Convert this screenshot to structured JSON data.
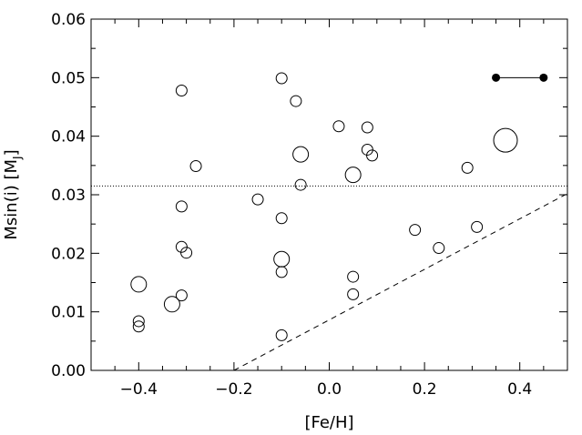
{
  "chart_data": {
    "type": "scatter",
    "xlabel": "[Fe/H]",
    "ylabel_main": "Msin(i)  [M",
    "ylabel_sub": "J",
    "ylabel_close": "]",
    "xlim": [
      -0.5,
      0.5
    ],
    "ylim": [
      0.0,
      0.06
    ],
    "x_ticks": [
      {
        "value": -0.4,
        "label": "−0.4"
      },
      {
        "value": -0.2,
        "label": "−0.2"
      },
      {
        "value": 0.0,
        "label": "0.0"
      },
      {
        "value": 0.2,
        "label": "0.2"
      },
      {
        "value": 0.4,
        "label": "0.4"
      }
    ],
    "y_ticks": [
      {
        "value": 0.0,
        "label": "0.00"
      },
      {
        "value": 0.01,
        "label": "0.01"
      },
      {
        "value": 0.02,
        "label": "0.02"
      },
      {
        "value": 0.03,
        "label": "0.03"
      },
      {
        "value": 0.04,
        "label": "0.04"
      },
      {
        "value": 0.05,
        "label": "0.05"
      },
      {
        "value": 0.06,
        "label": "0.06"
      }
    ],
    "hline_dotted": 0.0315,
    "dashed_line": [
      [
        -0.2,
        0.0
      ],
      [
        0.5,
        0.0302
      ]
    ],
    "error_bar": {
      "x": [
        0.35,
        0.45
      ],
      "y": 0.05
    },
    "points": [
      {
        "x": -0.31,
        "y": 0.0478,
        "size": "small"
      },
      {
        "x": -0.1,
        "y": 0.0499,
        "size": "small"
      },
      {
        "x": -0.07,
        "y": 0.046,
        "size": "small"
      },
      {
        "x": 0.02,
        "y": 0.0417,
        "size": "small"
      },
      {
        "x": 0.08,
        "y": 0.0415,
        "size": "small"
      },
      {
        "x": 0.37,
        "y": 0.0393,
        "size": "large"
      },
      {
        "x": -0.06,
        "y": 0.0369,
        "size": "medium"
      },
      {
        "x": 0.08,
        "y": 0.0377,
        "size": "small"
      },
      {
        "x": 0.09,
        "y": 0.0367,
        "size": "small"
      },
      {
        "x": -0.28,
        "y": 0.0349,
        "size": "small"
      },
      {
        "x": 0.29,
        "y": 0.0346,
        "size": "small"
      },
      {
        "x": 0.05,
        "y": 0.0334,
        "size": "medium"
      },
      {
        "x": -0.06,
        "y": 0.0317,
        "size": "small"
      },
      {
        "x": -0.15,
        "y": 0.0292,
        "size": "small"
      },
      {
        "x": -0.31,
        "y": 0.028,
        "size": "small"
      },
      {
        "x": -0.1,
        "y": 0.026,
        "size": "small"
      },
      {
        "x": 0.31,
        "y": 0.0245,
        "size": "small"
      },
      {
        "x": 0.18,
        "y": 0.024,
        "size": "small"
      },
      {
        "x": 0.23,
        "y": 0.0209,
        "size": "small"
      },
      {
        "x": -0.31,
        "y": 0.0211,
        "size": "small"
      },
      {
        "x": -0.3,
        "y": 0.0201,
        "size": "small"
      },
      {
        "x": -0.1,
        "y": 0.019,
        "size": "medium"
      },
      {
        "x": -0.1,
        "y": 0.0168,
        "size": "small"
      },
      {
        "x": 0.05,
        "y": 0.016,
        "size": "small"
      },
      {
        "x": -0.4,
        "y": 0.0147,
        "size": "medium"
      },
      {
        "x": -0.31,
        "y": 0.0128,
        "size": "small"
      },
      {
        "x": 0.05,
        "y": 0.013,
        "size": "small"
      },
      {
        "x": -0.33,
        "y": 0.0113,
        "size": "medium"
      },
      {
        "x": -0.4,
        "y": 0.0084,
        "size": "small"
      },
      {
        "x": -0.4,
        "y": 0.0075,
        "size": "small"
      },
      {
        "x": -0.1,
        "y": 0.006,
        "size": "small"
      }
    ],
    "grid": false,
    "marker_style": "open circle"
  }
}
